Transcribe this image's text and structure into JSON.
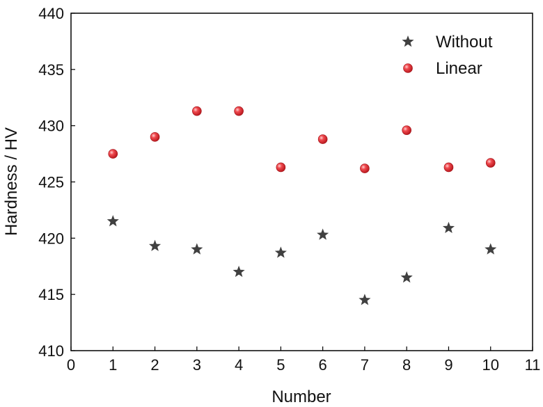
{
  "chart_data": {
    "type": "scatter",
    "title": "",
    "xlabel": "Number",
    "ylabel": "Hardness / HV",
    "xlim": [
      0,
      11
    ],
    "ylim": [
      410,
      440
    ],
    "xticks": [
      0,
      1,
      2,
      3,
      4,
      5,
      6,
      7,
      8,
      9,
      10,
      11
    ],
    "yticks": [
      410,
      415,
      420,
      425,
      430,
      435,
      440
    ],
    "grid": false,
    "legend_position": "top-right",
    "x": [
      1,
      2,
      3,
      4,
      5,
      6,
      7,
      8,
      9,
      10
    ],
    "series": [
      {
        "name": "Without",
        "marker": "star",
        "color": "#404040",
        "values": [
          421.5,
          419.3,
          419.0,
          417.0,
          418.7,
          420.3,
          414.5,
          416.5,
          420.9,
          419.0
        ]
      },
      {
        "name": "Linear",
        "marker": "sphere",
        "color": "#e8262d",
        "values": [
          427.5,
          429.0,
          431.3,
          431.3,
          426.3,
          428.8,
          426.2,
          429.6,
          426.3,
          426.7
        ]
      }
    ]
  }
}
